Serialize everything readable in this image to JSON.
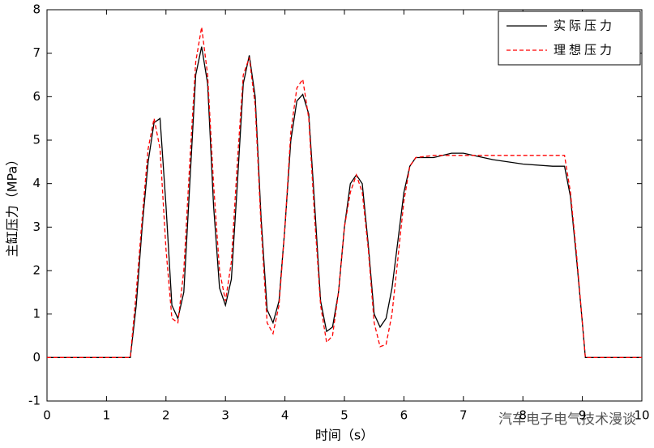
{
  "chart_data": {
    "type": "line",
    "xlabel": "时间（s）",
    "ylabel": "主缸压力（MPa）",
    "xlim": [
      0,
      10
    ],
    "ylim": [
      -1,
      8
    ],
    "xticks": [
      0,
      1,
      2,
      3,
      4,
      5,
      6,
      7,
      8,
      9,
      10
    ],
    "yticks": [
      -1,
      0,
      1,
      2,
      3,
      4,
      5,
      6,
      7,
      8
    ],
    "legend": "upper right",
    "watermark": "汽车电子电气技术漫谈",
    "series": [
      {
        "name": "实际压力",
        "color": "#000000",
        "dash": false,
        "x": [
          0,
          1.4,
          1.5,
          1.6,
          1.7,
          1.8,
          1.9,
          2.0,
          2.1,
          2.2,
          2.3,
          2.4,
          2.5,
          2.6,
          2.7,
          2.8,
          2.9,
          3.0,
          3.1,
          3.2,
          3.3,
          3.4,
          3.5,
          3.6,
          3.7,
          3.8,
          3.9,
          4.0,
          4.1,
          4.2,
          4.3,
          4.4,
          4.5,
          4.6,
          4.7,
          4.8,
          4.9,
          5.0,
          5.1,
          5.2,
          5.3,
          5.4,
          5.5,
          5.6,
          5.7,
          5.8,
          5.9,
          6.0,
          6.1,
          6.2,
          6.5,
          6.8,
          7.0,
          7.5,
          8.0,
          8.5,
          8.7,
          8.8,
          8.9,
          9.0,
          9.05,
          10
        ],
        "values": [
          0,
          0,
          1.2,
          3,
          4.5,
          5.4,
          5.5,
          3.5,
          1.2,
          0.9,
          1.5,
          4,
          6.5,
          7.15,
          6.3,
          3.5,
          1.6,
          1.2,
          1.8,
          4,
          6.3,
          6.95,
          6,
          3.2,
          1.1,
          0.8,
          1.3,
          3,
          5,
          5.9,
          6.05,
          5.6,
          3.5,
          1.3,
          0.6,
          0.7,
          1.5,
          3,
          4,
          4.2,
          4,
          2.6,
          1,
          0.7,
          0.9,
          1.6,
          2.7,
          3.8,
          4.4,
          4.6,
          4.6,
          4.7,
          4.7,
          4.55,
          4.45,
          4.4,
          4.4,
          3.7,
          2.3,
          0.8,
          0,
          0
        ]
      },
      {
        "name": "理想压力",
        "color": "#ff0000",
        "dash": true,
        "x": [
          0,
          1.4,
          1.5,
          1.6,
          1.7,
          1.8,
          1.9,
          2.0,
          2.1,
          2.2,
          2.3,
          2.4,
          2.5,
          2.6,
          2.7,
          2.8,
          2.9,
          3.0,
          3.1,
          3.2,
          3.3,
          3.4,
          3.5,
          3.6,
          3.7,
          3.8,
          3.9,
          4.0,
          4.1,
          4.2,
          4.3,
          4.4,
          4.5,
          4.6,
          4.7,
          4.8,
          4.9,
          5.0,
          5.1,
          5.2,
          5.3,
          5.4,
          5.5,
          5.6,
          5.7,
          5.8,
          5.9,
          6.0,
          6.1,
          6.2,
          6.5,
          8.7,
          8.8,
          8.9,
          9.0,
          9.05,
          10
        ],
        "values": [
          0,
          0,
          1.5,
          3.2,
          4.8,
          5.5,
          4.8,
          2.5,
          0.9,
          0.8,
          2,
          4.5,
          6.8,
          7.6,
          6.5,
          4,
          2,
          1.3,
          2.2,
          4.5,
          6.5,
          6.9,
          5.8,
          3,
          0.8,
          0.55,
          1.2,
          3,
          5.2,
          6.2,
          6.4,
          5.5,
          3.2,
          1.2,
          0.35,
          0.5,
          1.5,
          3,
          3.8,
          4.2,
          3.8,
          2.5,
          0.8,
          0.25,
          0.3,
          1,
          2.3,
          3.6,
          4.4,
          4.6,
          4.65,
          4.65,
          3.8,
          2.4,
          0.8,
          0,
          0
        ]
      }
    ]
  }
}
